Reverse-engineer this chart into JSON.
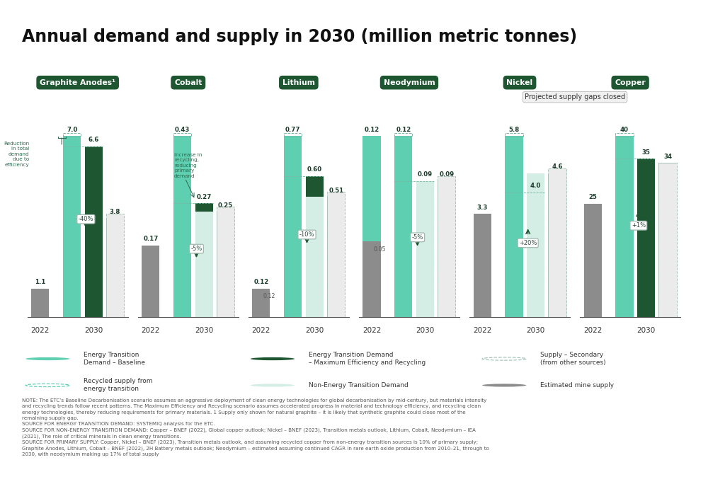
{
  "title": "Annual demand and supply in 2030 (million metric tonnes)",
  "bg": "#ffffff",
  "c_et_base": "#5ecfb1",
  "c_et_max": "#1e5631",
  "c_non_et": "#d4ede5",
  "c_mine": "#8c8c8c",
  "c_supply_sec": "#ebebeb",
  "c_recycled": "#c8e8dc",
  "c_header": "#1e5631",
  "cats_display": [
    "Graphite Anodes¹",
    "Cobalt",
    "Lithium",
    "Neodymium",
    "Nickel",
    "Copper"
  ],
  "cat_keys": [
    "Graphite Anodes",
    "Cobalt",
    "Lithium",
    "Neodymium",
    "Nickel",
    "Copper"
  ],
  "group_max": {
    "Graphite Anodes": 7.0,
    "Cobalt": 0.43,
    "Lithium": 0.77,
    "Neodymium": 0.12,
    "Nickel": 5.8,
    "Copper": 40.0
  },
  "bars_2022": {
    "Graphite Anodes": {
      "mine": 1.1,
      "et_base": 0.0
    },
    "Cobalt": {
      "mine": 0.17,
      "et_base": 0.0
    },
    "Lithium": {
      "mine": 0.12,
      "et_base": 0.12
    },
    "Neodymium": {
      "mine": 0.05,
      "et_base": 0.12
    },
    "Nickel": {
      "mine": 3.3,
      "et_base": 0.0
    },
    "Copper": {
      "mine": 25.0,
      "et_base": 0.0
    }
  },
  "bars_2030": {
    "Graphite Anodes": {
      "et_base": 7.0,
      "et_max": 6.6,
      "non_et": 0.0,
      "mine": 3.8,
      "supply_sec": 0.0
    },
    "Cobalt": {
      "et_base": 0.43,
      "et_max": 0.27,
      "non_et": 0.25,
      "mine": 0.25,
      "supply_sec": 0.0
    },
    "Lithium": {
      "et_base": 0.77,
      "et_max": 0.6,
      "non_et": 0.51,
      "mine": 0.51,
      "supply_sec": 0.0
    },
    "Neodymium": {
      "et_base": 0.12,
      "et_max": 0.09,
      "non_et": 0.09,
      "mine": 0.09,
      "supply_sec": 0.0
    },
    "Nickel": {
      "et_base": 5.8,
      "et_max": 4.0,
      "non_et": 4.6,
      "mine": 4.6,
      "supply_sec": 0.0
    },
    "Copper": {
      "et_base": 40.0,
      "et_max": 35.0,
      "non_et": 0.0,
      "mine": 34.0,
      "supply_sec": 34.0
    }
  },
  "lbl_2022": {
    "Graphite Anodes": "1.1",
    "Cobalt": "0.17",
    "Lithium": "0.12",
    "Neodymium": "0.12",
    "Nickel": "3.3",
    "Copper": "25"
  },
  "lbl_2022_mine_sub": {
    "Lithium": "0.12",
    "Neodymium": "0.05"
  },
  "lbl_2030_b1": {
    "Graphite Anodes": "7.0",
    "Cobalt": "0.43",
    "Lithium": "0.77",
    "Neodymium": "0.12",
    "Nickel": "5.8",
    "Copper": "40"
  },
  "lbl_2030_b2": {
    "Graphite Anodes": "6.6",
    "Cobalt": "0.27",
    "Lithium": "0.60",
    "Neodymium": "0.09",
    "Nickel": "4.0",
    "Copper": "35"
  },
  "lbl_2030_b3": {
    "Graphite Anodes": "3.8",
    "Cobalt": "0.25",
    "Lithium": "0.51",
    "Neodymium": "0.09",
    "Nickel": "4.6",
    "Copper": "34"
  },
  "annot_pct": {
    "Graphite Anodes": "-40%",
    "Cobalt": "-5%",
    "Lithium": "-10%",
    "Neodymium": "-5%",
    "Nickel": "+20%",
    "Copper": "+1%"
  },
  "annot_up": [
    "Nickel",
    "Copper"
  ],
  "notes": [
    "NOTE: The ETC’s Baseline Decarbonisation scenario assumes an aggressive deployment of clean energy technologies for global decarbonisation by mid-century, but materials intensity",
    "and recycling trends follow recent patterns. The Maximum Efficiency and Recycling scenario assumes accelerated progress in material and technology efficiency, and recycling clean",
    "energy technologies, thereby reducing requirements for primary materials. 1 Supply only shown for natural graphite – it is likely that synthetic graphite could close most of the",
    "remaining supply gap.",
    "SOURCE FOR ENERGY TRANSITION DEMAND: SYSTEMIQ analysis for the ETC.",
    "SOURCE FOR NON-ENERGY TRANSITION DEMAND: Copper – BNEF (2022), Global copper outlook; Nickel – BNEF (2023), Transition metals outlook, Lithium, Cobalt, Neodymium – IEA",
    "(2021), The role of critical minerals in clean energy transitions.",
    "SOURCE FOR PRIMARY SUPPLY: Copper, Nickel – BNEF (2023), Transition metals outlook, and assuming recycled copper from non-energy transition sources is 10% of primary supply;",
    "Graphite Anodes, Lithium, Cobalt – BNEF (2022), 2H Battery metals outlook; Neodymium – estimated assuming continued CAGR in rare earth oxide production from 2010–21, through to",
    "2030, with neodymium making up 17% of total supply"
  ]
}
